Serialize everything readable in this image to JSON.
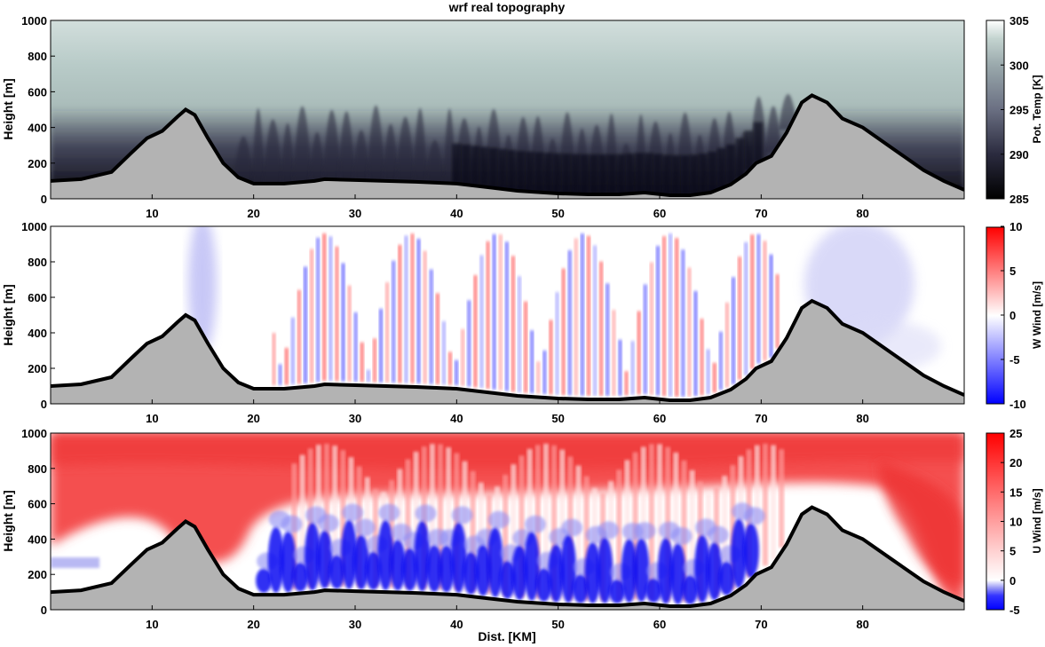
{
  "figure": {
    "title": "wrf real topography"
  },
  "chart_data": [
    {
      "type": "heatmap",
      "name": "pot-temp",
      "xlabel": "",
      "ylabel": "Height [m]",
      "xlim": [
        0,
        90
      ],
      "ylim": [
        0,
        1000
      ],
      "xticks": [
        10,
        20,
        30,
        40,
        50,
        60,
        70,
        80
      ],
      "yticks": [
        0,
        200,
        400,
        600,
        800,
        1000
      ],
      "colorbar": {
        "label": "Pot. Temp [K]",
        "range": [
          285,
          305
        ],
        "ticks": [
          285,
          290,
          295,
          300,
          305
        ],
        "colors": [
          "#000000",
          "#2b2b3f",
          "#6a6f82",
          "#9aa9ac",
          "#c4d4d0",
          "#ffffff"
        ]
      }
    },
    {
      "type": "heatmap",
      "name": "w-wind",
      "xlabel": "",
      "ylabel": "Height [m]",
      "xlim": [
        0,
        90
      ],
      "ylim": [
        0,
        1000
      ],
      "xticks": [
        10,
        20,
        30,
        40,
        50,
        60,
        70,
        80
      ],
      "yticks": [
        0,
        200,
        400,
        600,
        800,
        1000
      ],
      "colorbar": {
        "label": "W Wind [m/s]",
        "range": [
          -10,
          10
        ],
        "ticks": [
          -10,
          -5,
          0,
          5,
          10
        ],
        "colors": [
          "#0000ff",
          "#ffffff",
          "#ff0000"
        ]
      }
    },
    {
      "type": "heatmap",
      "name": "u-wind",
      "xlabel": "Dist. [KM]",
      "ylabel": "Height [m]",
      "xlim": [
        0,
        90
      ],
      "ylim": [
        0,
        1000
      ],
      "xticks": [
        10,
        20,
        30,
        40,
        50,
        60,
        70,
        80
      ],
      "yticks": [
        0,
        200,
        400,
        600,
        800,
        1000
      ],
      "colorbar": {
        "label": "U Wind [m/s]",
        "range": [
          -5,
          25
        ],
        "ticks": [
          -5,
          0,
          5,
          10,
          15,
          20,
          25
        ],
        "colors": [
          "#0000ff",
          "#ffffff",
          "#ff0000"
        ]
      }
    }
  ],
  "terrain": {
    "color": "#b3b3b3",
    "x": [
      0,
      3,
      6,
      8,
      9.5,
      11,
      12.5,
      13.3,
      14.2,
      15.5,
      17,
      18.5,
      20,
      23,
      26,
      27,
      30,
      33,
      36,
      40,
      43,
      46,
      50,
      53,
      56,
      58.5,
      61,
      63,
      65,
      67,
      68.5,
      69.5,
      71,
      72.5,
      74,
      75,
      76.5,
      78,
      80,
      83,
      86,
      88,
      90
    ],
    "y": [
      100,
      110,
      150,
      260,
      340,
      380,
      460,
      500,
      470,
      340,
      200,
      120,
      85,
      85,
      100,
      110,
      105,
      100,
      95,
      85,
      65,
      45,
      30,
      25,
      25,
      35,
      20,
      20,
      35,
      80,
      140,
      200,
      240,
      370,
      540,
      580,
      540,
      450,
      400,
      280,
      160,
      100,
      50
    ]
  }
}
